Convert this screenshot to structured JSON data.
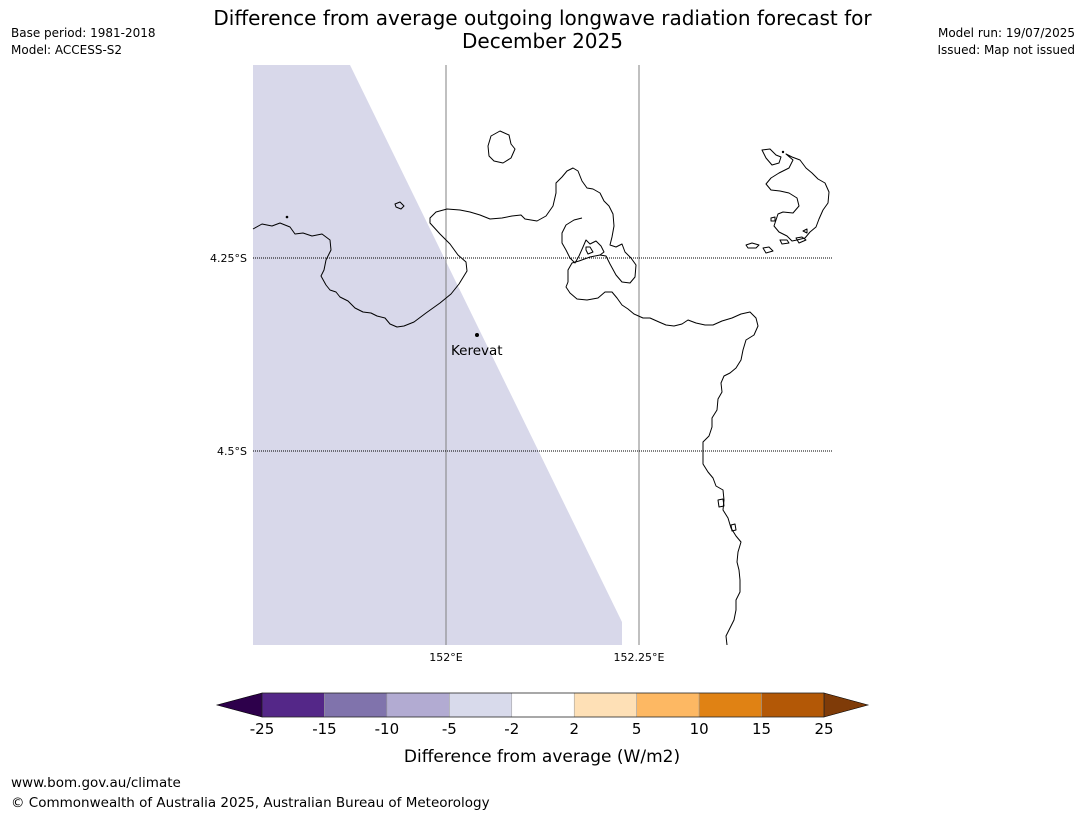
{
  "title": {
    "line1": "Difference from average outgoing longwave radiation forecast for",
    "line2": "December 2025"
  },
  "meta_left": {
    "base_period": "Base period: 1981-2018",
    "model": "Model: ACCESS-S2"
  },
  "meta_right": {
    "model_run": "Model run: 19/07/2025",
    "issued": "Issued: Map not issued"
  },
  "map": {
    "lat_labels": [
      "4.25°S",
      "4.5°S"
    ],
    "lon_labels": [
      "152°E",
      "152.25°E"
    ],
    "place": "Kerevat",
    "anomaly_color": "#d8d8ea",
    "coast_color": "#000000"
  },
  "legend": {
    "title": "Difference from average (W/m2)",
    "ticks": [
      "-25",
      "-15",
      "-10",
      "-5",
      "-2",
      "2",
      "5",
      "10",
      "15",
      "25"
    ],
    "under_color": "#2d004b",
    "over_color": "#7f3b08",
    "colors": [
      "#542788",
      "#8073ac",
      "#b2abd2",
      "#d8daeb",
      "#ffffff",
      "#fee0b6",
      "#fdb863",
      "#e08214",
      "#b35806"
    ]
  },
  "footer": {
    "url": "www.bom.gov.au/climate",
    "copyright": "© Commonwealth of Australia 2025, Australian Bureau of Meteorology"
  }
}
